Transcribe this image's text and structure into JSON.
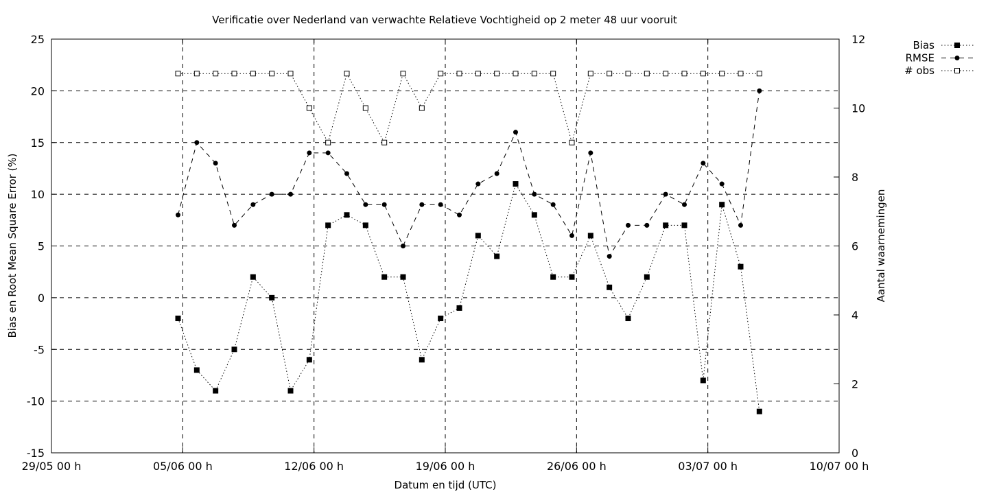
{
  "chart_data": {
    "type": "line",
    "title": "Verificatie over Nederland van verwachte Relatieve Vochtigheid op 2 meter 48 uur vooruit",
    "xlabel": "Datum en tijd (UTC)",
    "ylabel": "Bias en Root Mean Square Error (%)",
    "y2label": "Aantal waarnemingen",
    "x_unit": "days",
    "x_ticks": [
      {
        "value": 0,
        "label": "29/05 00 h"
      },
      {
        "value": 7,
        "label": "05/06 00 h"
      },
      {
        "value": 14,
        "label": "12/06 00 h"
      },
      {
        "value": 21,
        "label": "19/06 00 h"
      },
      {
        "value": 28,
        "label": "26/06 00 h"
      },
      {
        "value": 35,
        "label": "03/07 00 h"
      },
      {
        "value": 42,
        "label": "10/07 00 h"
      }
    ],
    "xlim": [
      0,
      42
    ],
    "ylim": [
      -15,
      25
    ],
    "y_ticks": [
      -15,
      -10,
      -5,
      0,
      5,
      10,
      15,
      20,
      25
    ],
    "y2lim": [
      0,
      12
    ],
    "y2_ticks": [
      0,
      2,
      4,
      6,
      8,
      10,
      12
    ],
    "grid": true,
    "legend_position": "top-right",
    "x": [
      6.75,
      7.75,
      8.75,
      9.75,
      10.75,
      11.75,
      12.75,
      13.75,
      14.75,
      15.75,
      16.75,
      17.75,
      18.75,
      19.75,
      20.75,
      21.75,
      22.75,
      23.75,
      24.75,
      25.75,
      26.75,
      27.75,
      28.75,
      29.75,
      30.75,
      31.75,
      32.75,
      33.75,
      34.75,
      35.75,
      36.75,
      37.75
    ],
    "series": [
      {
        "name": "Bias",
        "axis": "y",
        "style": "dotted",
        "marker": "filled-square",
        "values": [
          -2,
          -7,
          -9,
          -5,
          2,
          0,
          -9,
          -6,
          7,
          8,
          7,
          2,
          2,
          -6,
          -2,
          -1,
          6,
          4,
          11,
          8,
          2,
          2,
          6,
          1,
          -2,
          2,
          7,
          7,
          -8,
          9,
          3,
          -11
        ]
      },
      {
        "name": "RMSE",
        "axis": "y",
        "style": "dashed",
        "marker": "filled-circle",
        "values": [
          8,
          15,
          13,
          7,
          9,
          10,
          10,
          14,
          14,
          12,
          9,
          9,
          5,
          9,
          9,
          8,
          11,
          12,
          16,
          10,
          9,
          6,
          14,
          4,
          7,
          7,
          10,
          9,
          13,
          11,
          7,
          20
        ]
      },
      {
        "name": "# obs",
        "axis": "y2",
        "style": "dotted",
        "marker": "open-square",
        "values": [
          11,
          11,
          11,
          11,
          11,
          11,
          11,
          10,
          9,
          11,
          10,
          9,
          11,
          10,
          11,
          11,
          11,
          11,
          11,
          11,
          11,
          9,
          11,
          11,
          11,
          11,
          11,
          11,
          11,
          11,
          11,
          11
        ]
      }
    ]
  }
}
